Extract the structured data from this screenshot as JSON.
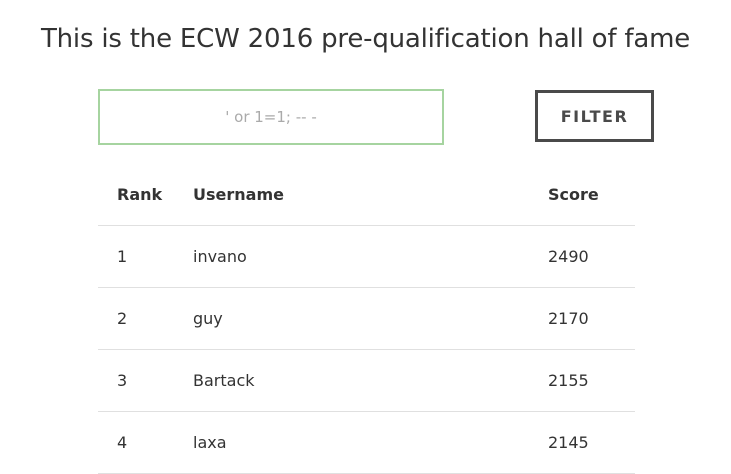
{
  "page": {
    "title": "This is the ECW 2016 pre-qualification hall of fame"
  },
  "filter": {
    "input_value": "",
    "placeholder": "' or 1=1; -- -",
    "button_label": "FILTER"
  },
  "table": {
    "headers": {
      "rank": "Rank",
      "username": "Username",
      "score": "Score"
    },
    "rows": [
      {
        "rank": "1",
        "username": "invano",
        "score": "2490"
      },
      {
        "rank": "2",
        "username": "guy",
        "score": "2170"
      },
      {
        "rank": "3",
        "username": "Bartack",
        "score": "2155"
      },
      {
        "rank": "4",
        "username": "laxa",
        "score": "2145"
      }
    ]
  },
  "colors": {
    "input_border": "#a6d4a0",
    "button_border": "#4a4a4a",
    "text": "#333333",
    "row_divider": "#e0e0e0"
  }
}
